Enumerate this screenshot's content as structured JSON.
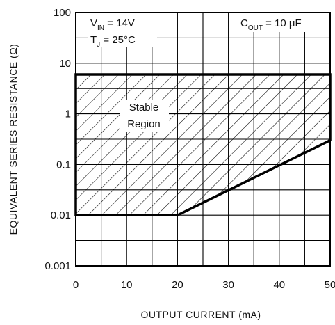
{
  "chart_data": {
    "type": "area",
    "xlabel": "OUTPUT CURRENT (mA)",
    "ylabel": "EQUIVALENT SERIES RESISTANCE (Ω)",
    "x_ticks": [
      "0",
      "10",
      "20",
      "30",
      "40",
      "50"
    ],
    "y_ticks": [
      "100",
      "10",
      "1",
      "0.1",
      "0.01",
      "0.001"
    ],
    "xlim": [
      0,
      50
    ],
    "ylim": [
      0.001,
      100
    ],
    "y_scale": "log",
    "grid": true,
    "region": {
      "name": "Stable Region",
      "label_lines": [
        "Stable",
        "Region"
      ],
      "upper_boundary": {
        "x": [
          0,
          50
        ],
        "y": [
          6,
          6
        ]
      },
      "lower_boundary": {
        "x": [
          0,
          20,
          50
        ],
        "y": [
          0.01,
          0.01,
          0.3
        ]
      }
    },
    "annotations": {
      "vin": {
        "main": "V",
        "sub": "IN",
        "rest": " = 14V"
      },
      "tj": {
        "main": "T",
        "sub": "J",
        "rest": " = 25°C"
      },
      "cout": {
        "main": "C",
        "sub": "OUT",
        "rest": " = 10 μF"
      }
    }
  }
}
